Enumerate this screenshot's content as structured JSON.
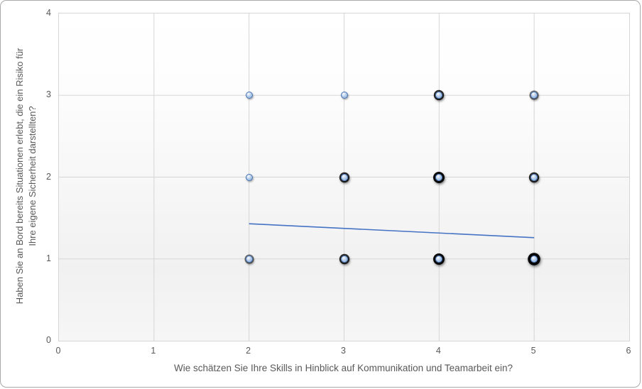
{
  "chart_data": {
    "type": "scatter",
    "title": "",
    "xlabel": "Wie schätzen Sie Ihre Skills in Hinblick auf Kommunikation und Teamarbeit ein?",
    "ylabel": "Haben Sie an Bord bereits Situationen erlebt, die ein Risiko für Ihre eigene Sicherheit darstellten?",
    "ylabel_lines": [
      "Haben Sie an Bord bereits Situationen erlebt, die ein Risiko für",
      "Ihre eigene Sicherheit darstellten?"
    ],
    "xlim": [
      0,
      6
    ],
    "ylim": [
      0,
      4
    ],
    "xticks": [
      "0",
      "1",
      "2",
      "3",
      "4",
      "5",
      "6"
    ],
    "yticks": [
      "0",
      "1",
      "2",
      "3",
      "4"
    ],
    "grid": true,
    "legend": false,
    "points": [
      {
        "x": 2,
        "y": 3,
        "overlap": 1
      },
      {
        "x": 3,
        "y": 3,
        "overlap": 1
      },
      {
        "x": 4,
        "y": 3,
        "overlap": 3
      },
      {
        "x": 5,
        "y": 3,
        "overlap": 2
      },
      {
        "x": 2,
        "y": 2,
        "overlap": 1
      },
      {
        "x": 3,
        "y": 2,
        "overlap": 3
      },
      {
        "x": 4,
        "y": 2,
        "overlap": 4
      },
      {
        "x": 5,
        "y": 2,
        "overlap": 3
      },
      {
        "x": 2,
        "y": 1,
        "overlap": 2
      },
      {
        "x": 3,
        "y": 1,
        "overlap": 3
      },
      {
        "x": 4,
        "y": 1,
        "overlap": 4
      },
      {
        "x": 5,
        "y": 1,
        "overlap": 5
      }
    ],
    "trendline": {
      "x1": 2,
      "y1": 1.43,
      "x2": 5,
      "y2": 1.26
    },
    "colors": {
      "marker_fill": "#aec7e7",
      "marker_border": "#4472b4",
      "trendline": "#4472c4",
      "gridline": "#d6d6d6",
      "axis_text": "#595959"
    }
  }
}
